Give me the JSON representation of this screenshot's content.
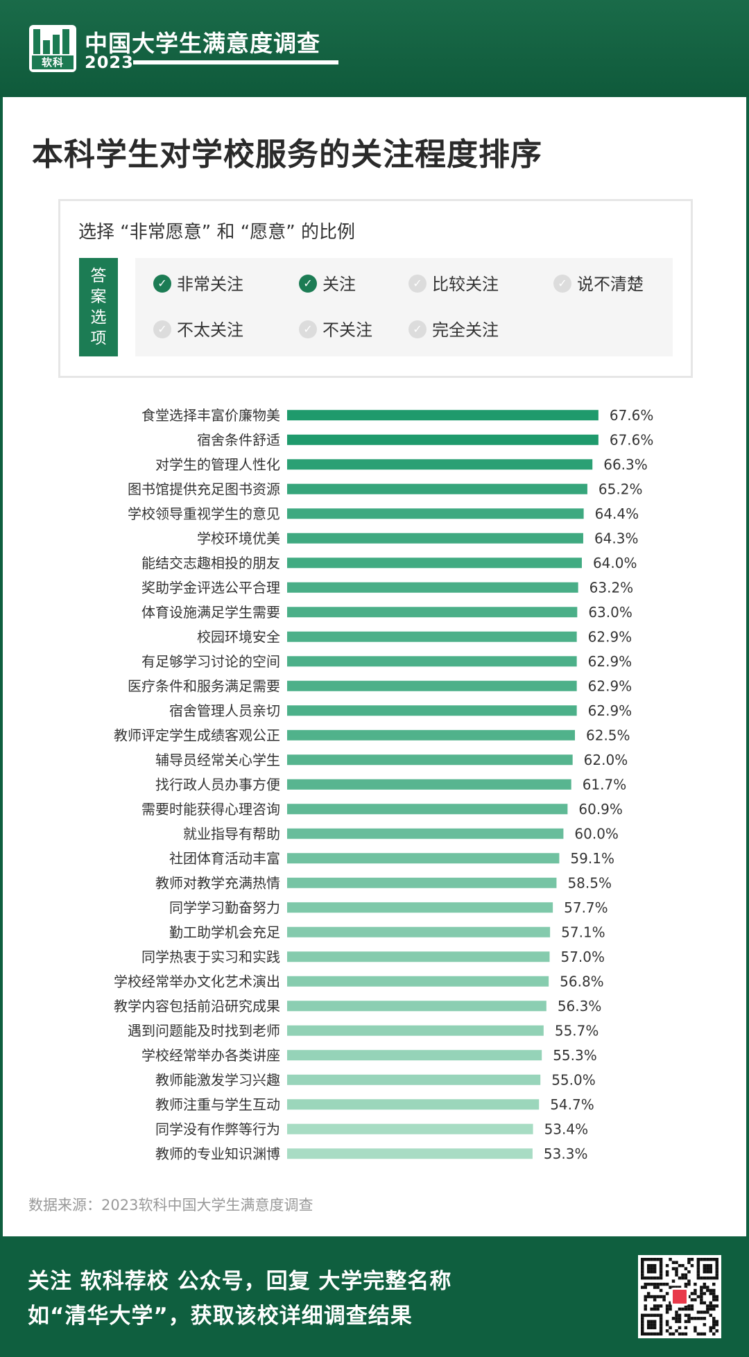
{
  "header": {
    "logo_text": "软科",
    "brand_title": "中国大学生满意度调查",
    "year": "2023"
  },
  "title": "本科学生对学校服务的关注程度排序",
  "legend": {
    "subtitle": "选择 “非常愿意” 和 “愿意” 的比例",
    "tag_chars": [
      "答",
      "案",
      "选",
      "项"
    ],
    "options": [
      {
        "label": "非常关注",
        "checked": true
      },
      {
        "label": "关注",
        "checked": true
      },
      {
        "label": "比较关注",
        "checked": false
      },
      {
        "label": "说不清楚",
        "checked": false
      },
      {
        "label": "不太关注",
        "checked": false
      },
      {
        "label": "不关注",
        "checked": false
      },
      {
        "label": "完全关注",
        "checked": false
      }
    ]
  },
  "chart_data": {
    "type": "bar",
    "orientation": "horizontal",
    "title": "本科学生对学校服务的关注程度排序",
    "unit": "%",
    "categories": [
      "食堂选择丰富价廉物美",
      "宿舍条件舒适",
      "对学生的管理人性化",
      "图书馆提供充足图书资源",
      "学校领导重视学生的意见",
      "学校环境优美",
      "能结交志趣相投的朋友",
      "奖助学金评选公平合理",
      "体育设施满足学生需要",
      "校园环境安全",
      "有足够学习讨论的空间",
      "医疗条件和服务满足需要",
      "宿舍管理人员亲切",
      "教师评定学生成绩客观公正",
      "辅导员经常关心学生",
      "找行政人员办事方便",
      "需要时能获得心理咨询",
      "就业指导有帮助",
      "社团体育活动丰富",
      "教师对教学充满热情",
      "同学学习勤奋努力",
      "勤工助学机会充足",
      "同学热衷于实习和实践",
      "学校经常举办文化艺术演出",
      "教学内容包括前沿研究成果",
      "遇到问题能及时找到老师",
      "学校经常举办各类讲座",
      "教师能激发学习兴趣",
      "教师注重与学生互动",
      "同学没有作弊等行为",
      "教师的专业知识渊博"
    ],
    "values": [
      67.6,
      67.6,
      66.3,
      65.2,
      64.4,
      64.3,
      64.0,
      63.2,
      63.0,
      62.9,
      62.9,
      62.9,
      62.9,
      62.5,
      62.0,
      61.7,
      60.9,
      60.0,
      59.1,
      58.5,
      57.7,
      57.1,
      57.0,
      56.8,
      56.3,
      55.7,
      55.3,
      55.0,
      54.7,
      53.4,
      53.3
    ],
    "value_labels": [
      "67.6%",
      "67.6%",
      "66.3%",
      "65.2%",
      "64.4%",
      "64.3%",
      "64.0%",
      "63.2%",
      "63.0%",
      "62.9%",
      "62.9%",
      "62.9%",
      "62.9%",
      "62.5%",
      "62.0%",
      "61.7%",
      "60.9%",
      "60.0%",
      "59.1%",
      "58.5%",
      "57.7%",
      "57.1%",
      "57.0%",
      "56.8%",
      "56.3%",
      "55.7%",
      "55.3%",
      "55.0%",
      "54.7%",
      "53.4%",
      "53.3%"
    ],
    "color_dark": "#1f9a6c",
    "color_light": "#a8dcc4",
    "grid": false,
    "legend": false
  },
  "source": "数据来源：2023软科中国大学生满意度调查",
  "footer": {
    "line1": "关注 软科荐校 公众号，回复 大学完整名称",
    "line2": "如“清华大学”，获取该校详细调查结果"
  }
}
